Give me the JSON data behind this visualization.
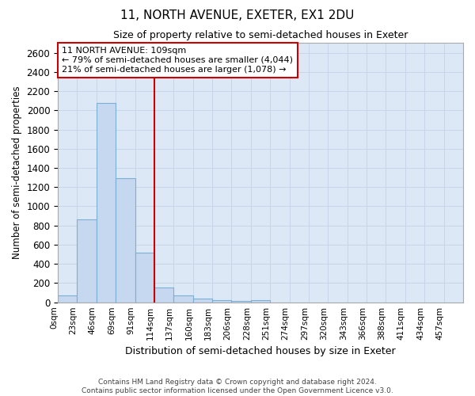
{
  "title": "11, NORTH AVENUE, EXETER, EX1 2DU",
  "subtitle": "Size of property relative to semi-detached houses in Exeter",
  "xlabel": "Distribution of semi-detached houses by size in Exeter",
  "ylabel": "Number of semi-detached properties",
  "footer_line1": "Contains HM Land Registry data © Crown copyright and database right 2024.",
  "footer_line2": "Contains public sector information licensed under the Open Government Licence v3.0.",
  "bar_labels": [
    "0sqm",
    "23sqm",
    "46sqm",
    "69sqm",
    "91sqm",
    "114sqm",
    "137sqm",
    "160sqm",
    "183sqm",
    "206sqm",
    "228sqm",
    "251sqm",
    "274sqm",
    "297sqm",
    "320sqm",
    "343sqm",
    "366sqm",
    "388sqm",
    "411sqm",
    "434sqm",
    "457sqm"
  ],
  "bar_values": [
    75,
    860,
    2080,
    1290,
    520,
    155,
    70,
    35,
    25,
    10,
    25,
    0,
    0,
    0,
    0,
    0,
    0,
    0,
    0,
    0,
    0
  ],
  "bar_color": "#c5d8f0",
  "bar_edge_color": "#7bafd4",
  "property_line_x": 5.0,
  "property_line_color": "#cc0000",
  "annotation_text": "11 NORTH AVENUE: 109sqm\n← 79% of semi-detached houses are smaller (4,044)\n21% of semi-detached houses are larger (1,078) →",
  "annotation_box_color": "#ffffff",
  "annotation_box_edge": "#cc0000",
  "ylim": [
    0,
    2700
  ],
  "yticks": [
    0,
    200,
    400,
    600,
    800,
    1000,
    1200,
    1400,
    1600,
    1800,
    2000,
    2200,
    2400,
    2600
  ],
  "grid_color": "#c8d4e8",
  "background_color": "#dce8f5"
}
